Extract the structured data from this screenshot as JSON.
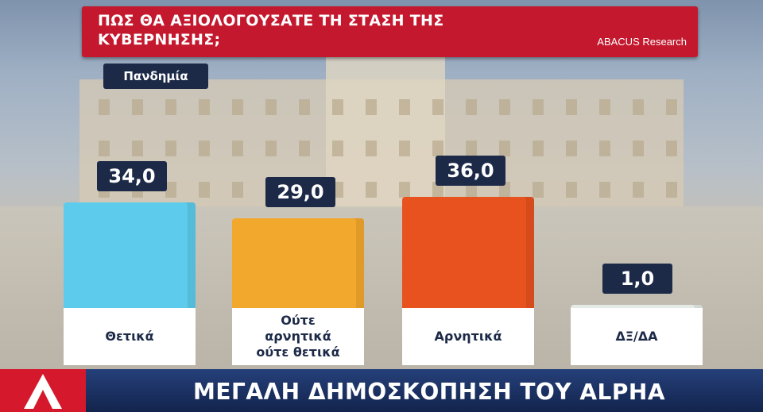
{
  "chart_data": {
    "type": "bar",
    "title": "ΠΩΣ ΘΑ ΑΞΙΟΛΟΓΟΥΣΑΤΕ ΤΗ ΣΤΑΣΗ ΤΗΣ ΚΥΒΕΡΝΗΣΗΣ;",
    "subtitle": "Πανδημία",
    "source": "ABACUS Research",
    "banner": "ΜΕΓΑΛΗ ΔΗΜΟΣΚΟΠΗΣΗ ΤΟΥ ALPHA",
    "categories": [
      "Θετικά",
      "Ούτε αρνητικά ούτε θετικά",
      "Αρνητικά",
      "ΔΞ/ΔΑ"
    ],
    "values": [
      34,
      29,
      36,
      1
    ],
    "value_labels": [
      "34,0",
      "29,0",
      "36,0",
      "1,0"
    ],
    "colors": [
      "#5ccbec",
      "#f2a82c",
      "#e8521e",
      "#e4ebe6"
    ]
  }
}
